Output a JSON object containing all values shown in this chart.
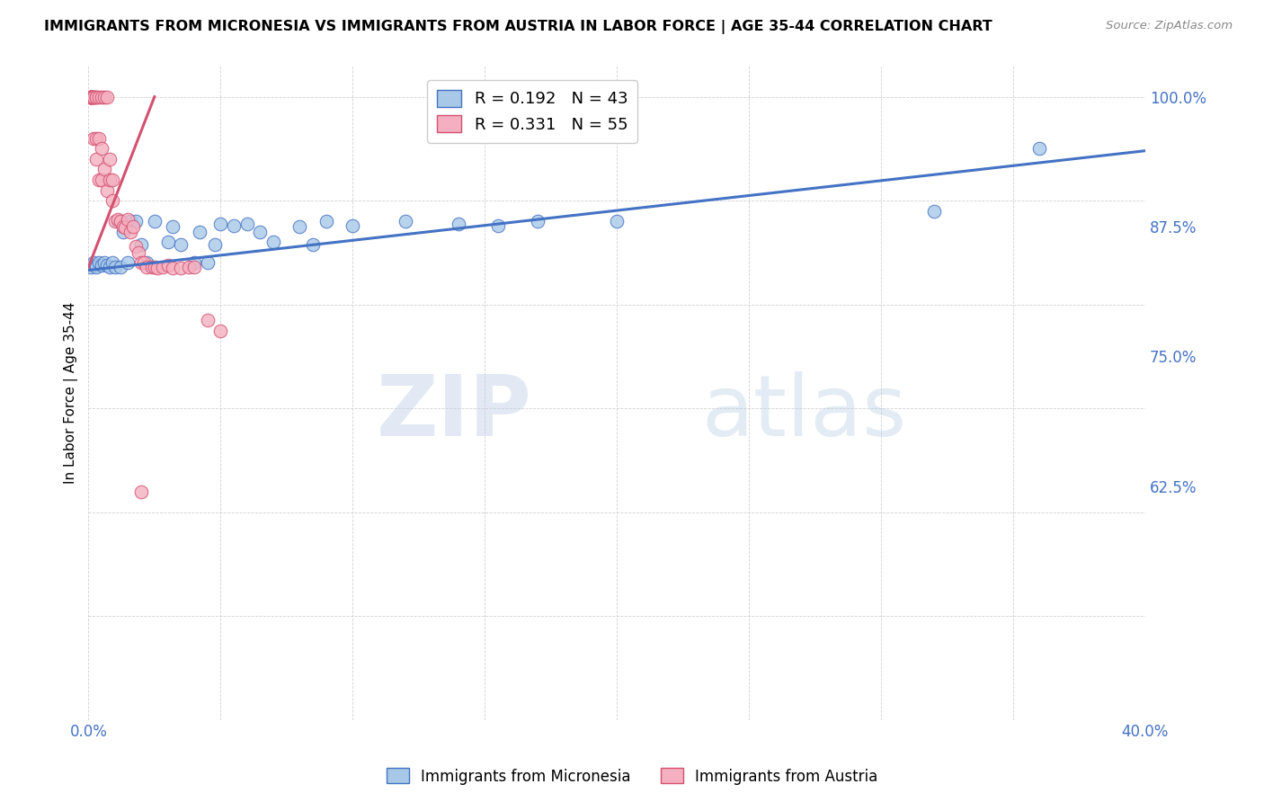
{
  "title": "IMMIGRANTS FROM MICRONESIA VS IMMIGRANTS FROM AUSTRIA IN LABOR FORCE | AGE 35-44 CORRELATION CHART",
  "source": "Source: ZipAtlas.com",
  "ylabel": "In Labor Force | Age 35-44",
  "legend_micronesia": "Immigrants from Micronesia",
  "legend_austria": "Immigrants from Austria",
  "R_micronesia": 0.192,
  "N_micronesia": 43,
  "R_austria": 0.331,
  "N_austria": 55,
  "xlim": [
    0.0,
    0.4
  ],
  "ylim": [
    0.4,
    1.03
  ],
  "yticks": [
    0.625,
    0.75,
    0.875,
    1.0
  ],
  "xticks": [
    0.0,
    0.05,
    0.1,
    0.15,
    0.2,
    0.25,
    0.3,
    0.35,
    0.4
  ],
  "color_micronesia": "#a8c8e8",
  "color_austria": "#f4b0c0",
  "line_color_micronesia": "#4472c4",
  "line_color_austria": "#d45070",
  "background_color": "#ffffff",
  "mic_x": [
    0.001,
    0.002,
    0.003,
    0.003,
    0.004,
    0.005,
    0.006,
    0.007,
    0.008,
    0.009,
    0.01,
    0.011,
    0.012,
    0.013,
    0.015,
    0.016,
    0.018,
    0.02,
    0.022,
    0.025,
    0.03,
    0.032,
    0.035,
    0.04,
    0.042,
    0.045,
    0.048,
    0.05,
    0.055,
    0.06,
    0.065,
    0.07,
    0.08,
    0.085,
    0.09,
    0.1,
    0.12,
    0.14,
    0.155,
    0.17,
    0.2,
    0.32,
    0.36
  ],
  "mic_y": [
    0.836,
    0.84,
    0.838,
    0.836,
    0.84,
    0.838,
    0.84,
    0.838,
    0.836,
    0.84,
    0.836,
    0.88,
    0.836,
    0.87,
    0.84,
    0.88,
    0.88,
    0.858,
    0.84,
    0.88,
    0.86,
    0.875,
    0.858,
    0.84,
    0.87,
    0.84,
    0.858,
    0.878,
    0.876,
    0.878,
    0.87,
    0.86,
    0.875,
    0.858,
    0.88,
    0.876,
    0.88,
    0.878,
    0.876,
    0.88,
    0.88,
    0.89,
    0.95
  ],
  "aut_x": [
    0.001,
    0.001,
    0.001,
    0.001,
    0.001,
    0.001,
    0.001,
    0.002,
    0.002,
    0.002,
    0.002,
    0.002,
    0.003,
    0.003,
    0.003,
    0.003,
    0.004,
    0.004,
    0.004,
    0.005,
    0.005,
    0.005,
    0.006,
    0.006,
    0.007,
    0.007,
    0.008,
    0.008,
    0.009,
    0.009,
    0.01,
    0.011,
    0.012,
    0.013,
    0.014,
    0.015,
    0.016,
    0.017,
    0.018,
    0.019,
    0.02,
    0.021,
    0.022,
    0.024,
    0.025,
    0.026,
    0.028,
    0.03,
    0.032,
    0.035,
    0.038,
    0.04,
    0.045,
    0.05,
    0.02
  ],
  "aut_y": [
    1.0,
    1.0,
    1.0,
    1.0,
    1.0,
    1.0,
    1.0,
    1.0,
    1.0,
    1.0,
    1.0,
    0.96,
    1.0,
    1.0,
    0.96,
    0.94,
    1.0,
    0.96,
    0.92,
    1.0,
    0.95,
    0.92,
    1.0,
    0.93,
    1.0,
    0.91,
    0.94,
    0.92,
    0.92,
    0.9,
    0.88,
    0.882,
    0.88,
    0.875,
    0.874,
    0.882,
    0.87,
    0.875,
    0.856,
    0.85,
    0.84,
    0.84,
    0.836,
    0.836,
    0.836,
    0.835,
    0.836,
    0.838,
    0.835,
    0.835,
    0.836,
    0.836,
    0.785,
    0.775,
    0.62
  ],
  "trendline_mic_x0": 0.0,
  "trendline_mic_y0": 0.833,
  "trendline_mic_x1": 0.4,
  "trendline_mic_y1": 0.948,
  "trendline_aut_x0": 0.0,
  "trendline_aut_y0": 0.836,
  "trendline_aut_x1": 0.025,
  "trendline_aut_y1": 1.0
}
